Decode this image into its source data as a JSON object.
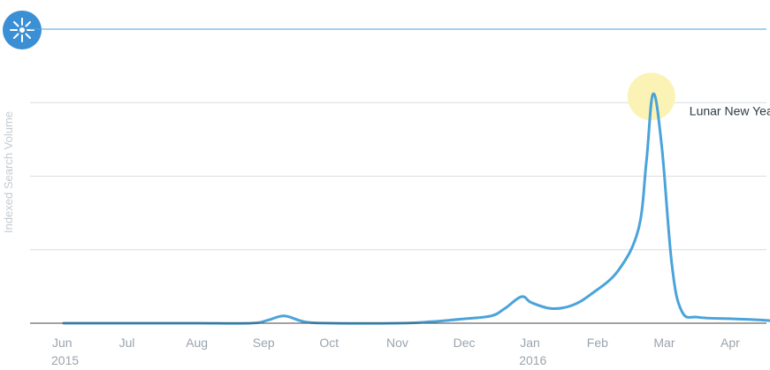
{
  "chart_data": {
    "type": "line",
    "title": "",
    "xlabel": "",
    "ylabel": "Indexed Search Volume",
    "ylim": [
      0,
      100
    ],
    "grid": true,
    "legend": "none",
    "x_ticks": [
      {
        "label": "Jun",
        "year": "2015",
        "pos": 0
      },
      {
        "label": "Jul",
        "year": "",
        "pos": 1
      },
      {
        "label": "Aug",
        "year": "",
        "pos": 2
      },
      {
        "label": "Sep",
        "year": "",
        "pos": 3
      },
      {
        "label": "Oct",
        "year": "",
        "pos": 4
      },
      {
        "label": "Nov",
        "year": "",
        "pos": 5
      },
      {
        "label": "Dec",
        "year": "",
        "pos": 6
      },
      {
        "label": "Jan",
        "year": "2016",
        "pos": 7
      },
      {
        "label": "Feb",
        "year": "",
        "pos": 8
      },
      {
        "label": "Mar",
        "year": "",
        "pos": 9
      },
      {
        "label": "Apr",
        "year": "",
        "pos": 10
      }
    ],
    "series": [
      {
        "color": "#4aa3db",
        "points": [
          [
            0,
            0
          ],
          [
            1,
            0
          ],
          [
            2,
            0
          ],
          [
            2.8,
            0
          ],
          [
            3.05,
            1
          ],
          [
            3.3,
            2.5
          ],
          [
            3.6,
            0.5
          ],
          [
            4,
            0
          ],
          [
            5,
            0
          ],
          [
            5.5,
            0.5
          ],
          [
            6,
            1.5
          ],
          [
            6.4,
            2.5
          ],
          [
            6.6,
            5
          ],
          [
            6.85,
            9
          ],
          [
            7,
            7
          ],
          [
            7.3,
            5
          ],
          [
            7.6,
            6
          ],
          [
            7.9,
            10
          ],
          [
            8.3,
            18
          ],
          [
            8.6,
            32
          ],
          [
            8.72,
            55
          ],
          [
            8.82,
            78
          ],
          [
            8.95,
            60
          ],
          [
            9.1,
            20
          ],
          [
            9.25,
            4
          ],
          [
            9.5,
            2
          ],
          [
            10,
            1.5
          ],
          [
            10.5,
            1
          ],
          [
            11,
            0
          ]
        ]
      }
    ],
    "annotations": [
      {
        "text": "Lunar New Year",
        "x": 8.82,
        "y": 100,
        "highlight_color": "#fbf3b5"
      }
    ]
  },
  "logo": {
    "icon": "sunburst-icon",
    "color": "#3b8fd4"
  }
}
